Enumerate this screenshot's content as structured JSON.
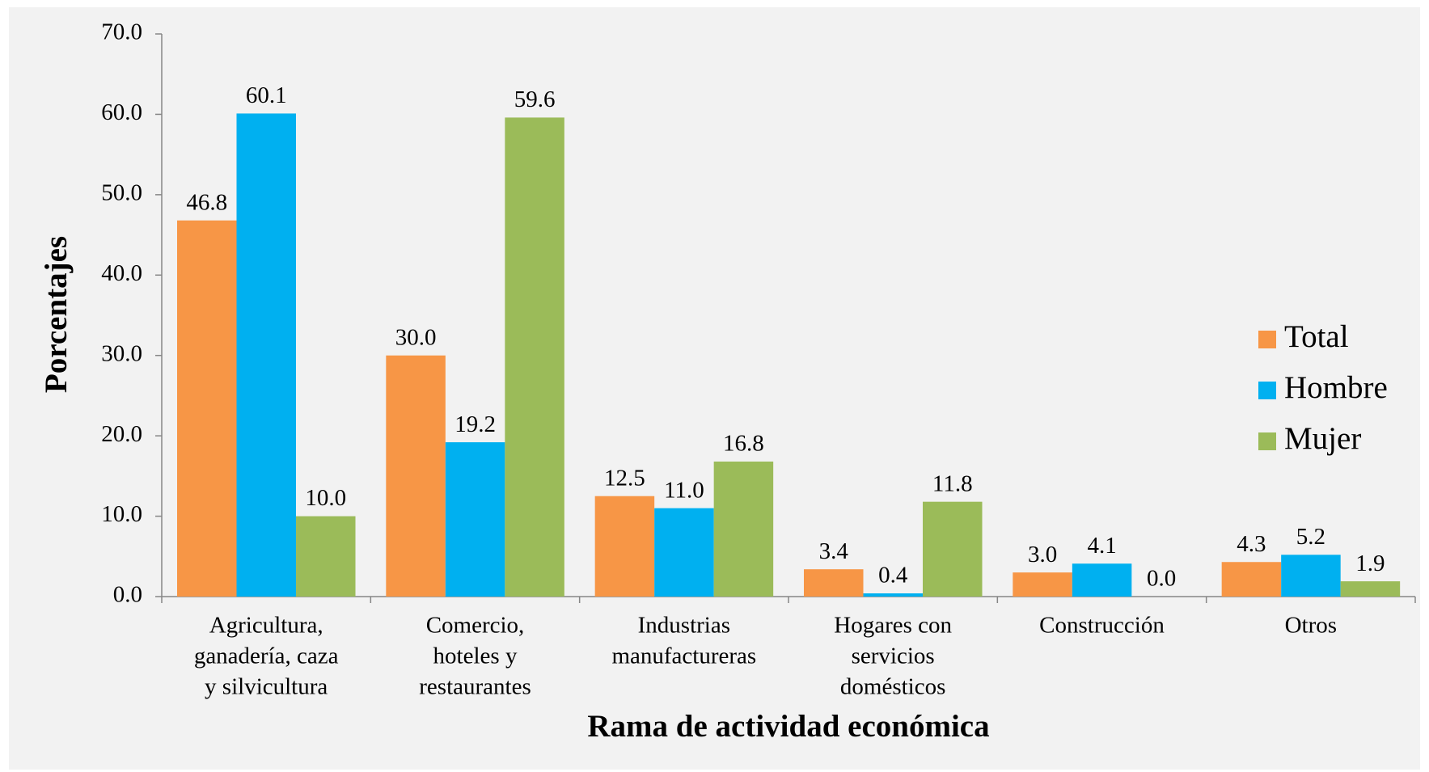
{
  "chart_data": {
    "type": "bar",
    "categories": [
      [
        "Agricultura,",
        "ganadería, caza",
        "y silvicultura"
      ],
      [
        "Comercio,",
        "hoteles y",
        "restaurantes"
      ],
      [
        "Industrias",
        "manufactureras"
      ],
      [
        "Hogares con",
        "servicios",
        "domésticos"
      ],
      [
        "Construcción"
      ],
      [
        "Otros"
      ]
    ],
    "series": [
      {
        "name": "Total",
        "color": "#f79646",
        "values": [
          46.8,
          30.0,
          12.5,
          3.4,
          3.0,
          4.3
        ],
        "value_labels": [
          "46.8",
          "30.0",
          "12.5",
          "3.4",
          "3.0",
          "4.3"
        ]
      },
      {
        "name": "Hombre",
        "color": "#00b0f0",
        "values": [
          60.1,
          19.2,
          11.0,
          0.4,
          4.1,
          5.2
        ],
        "value_labels": [
          "60.1",
          "19.2",
          "11.0",
          "0.4",
          "4.1",
          "5.2"
        ]
      },
      {
        "name": "Mujer",
        "color": "#9bbb59",
        "values": [
          10.0,
          59.6,
          16.8,
          11.8,
          0.0,
          1.9
        ],
        "value_labels": [
          "10.0",
          "59.6",
          "16.8",
          "11.8",
          "0.0",
          "1.9"
        ]
      }
    ],
    "xlabel": "Rama de actividad económica",
    "ylabel": "Porcentajes",
    "ylim": [
      0,
      70
    ],
    "yticks": [
      {
        "value": 0,
        "label": "0.0"
      },
      {
        "value": 10,
        "label": "10.0"
      },
      {
        "value": 20,
        "label": "20.0"
      },
      {
        "value": 30,
        "label": "30.0"
      },
      {
        "value": 40,
        "label": "40.0"
      },
      {
        "value": 50,
        "label": "50.0"
      },
      {
        "value": 60,
        "label": "60.0"
      },
      {
        "value": 70,
        "label": "70.0"
      }
    ],
    "legend": "right"
  }
}
